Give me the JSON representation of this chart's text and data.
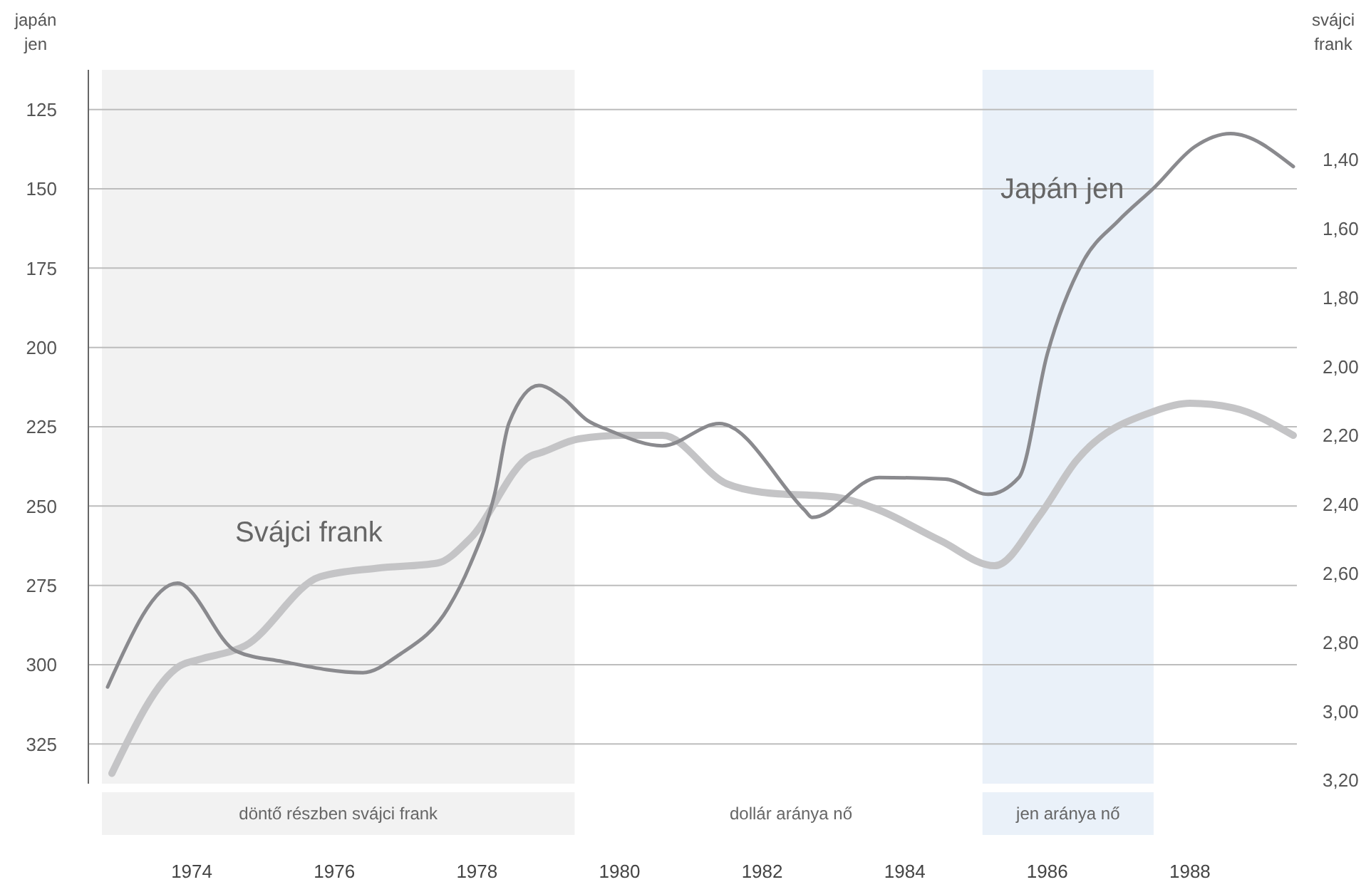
{
  "chart_data": {
    "type": "line",
    "ylabel": "japán jen",
    "y2label": "svájci frank",
    "xlim": [
      1972.55,
      1989.5
    ],
    "xticks": [
      1974,
      1976,
      1978,
      1980,
      1982,
      1984,
      1986,
      1988
    ],
    "ylim": [
      337.5,
      112.5
    ],
    "yticks": [
      125,
      150,
      175,
      200,
      225,
      250,
      275,
      300,
      325
    ],
    "y2lim": [
      3.21,
      1.14
    ],
    "y2ticks": [
      {
        "value": 1.4,
        "label": "1,40"
      },
      {
        "value": 1.6,
        "label": "1,60"
      },
      {
        "value": 1.8,
        "label": "1,80"
      },
      {
        "value": 2.0,
        "label": "2,00"
      },
      {
        "value": 2.2,
        "label": "2,20"
      },
      {
        "value": 2.4,
        "label": "2,40"
      },
      {
        "value": 2.6,
        "label": "2,60"
      },
      {
        "value": 2.8,
        "label": "2,80"
      },
      {
        "value": 3.0,
        "label": "3,00"
      },
      {
        "value": 3.2,
        "label": "3,20"
      }
    ],
    "annotations": [
      "dollár aránya nő"
    ],
    "grid": "y",
    "legend": false,
    "marker": "none",
    "line_style": "solid",
    "series": [
      {
        "name": "Svájci frank",
        "color": "#c4c4c6",
        "axis": "y2",
        "x": [
          1972.88,
          1973.82,
          1974.1,
          1974.75,
          1975.8,
          1976.6,
          1977.45,
          1977.9,
          1978.75,
          1978.9,
          1979.43,
          1980.07,
          1980.6,
          1981.5,
          1982.0,
          1983.06,
          1983.56,
          1984.5,
          1985.26,
          1985.9,
          1986.4,
          1987.5,
          1988.0,
          1988.6,
          1989.45
        ],
        "values": [
          3.18,
          2.87,
          2.85,
          2.81,
          2.61,
          2.585,
          2.57,
          2.5,
          2.26,
          2.25,
          2.21,
          2.2,
          2.2,
          2.34,
          2.365,
          2.38,
          2.41,
          2.505,
          2.578,
          2.43,
          2.275,
          2.13,
          2.107,
          2.12,
          2.2
        ]
      },
      {
        "name": "Japán jen",
        "color": "#8a8a8e",
        "x": [
          1972.82,
          1973.8,
          1974.62,
          1975.27,
          1976.4,
          1976.9,
          1977.6,
          1977.9,
          1978.25,
          1978.45,
          1978.87,
          1979.2,
          1979.55,
          1979.84,
          1980.6,
          1981.4,
          1982.6,
          1982.7,
          1983.64,
          1984.57,
          1985.17,
          1985.6,
          1986.0,
          1986.5,
          1987.0,
          1987.5,
          1988.07,
          1988.57,
          1989.45
        ],
        "values": [
          307,
          274.3,
          295.7,
          299,
          302.5,
          297,
          282,
          268.7,
          246,
          223.8,
          212,
          215.8,
          223,
          226,
          231,
          224,
          251.4,
          253.6,
          241,
          241.5,
          246.3,
          241,
          202,
          173,
          160,
          149.6,
          136.7,
          132.6,
          143
        ]
      }
    ],
    "bands": [
      {
        "axis": "x",
        "from": 1972.74,
        "to": 1979.37,
        "label": "döntő részben svájci frank",
        "color": "#f2f2f2"
      },
      {
        "axis": "x",
        "from": 1985.09,
        "to": 1987.49,
        "label": "jen aránya nő",
        "color": "#eaf1f9"
      }
    ]
  }
}
